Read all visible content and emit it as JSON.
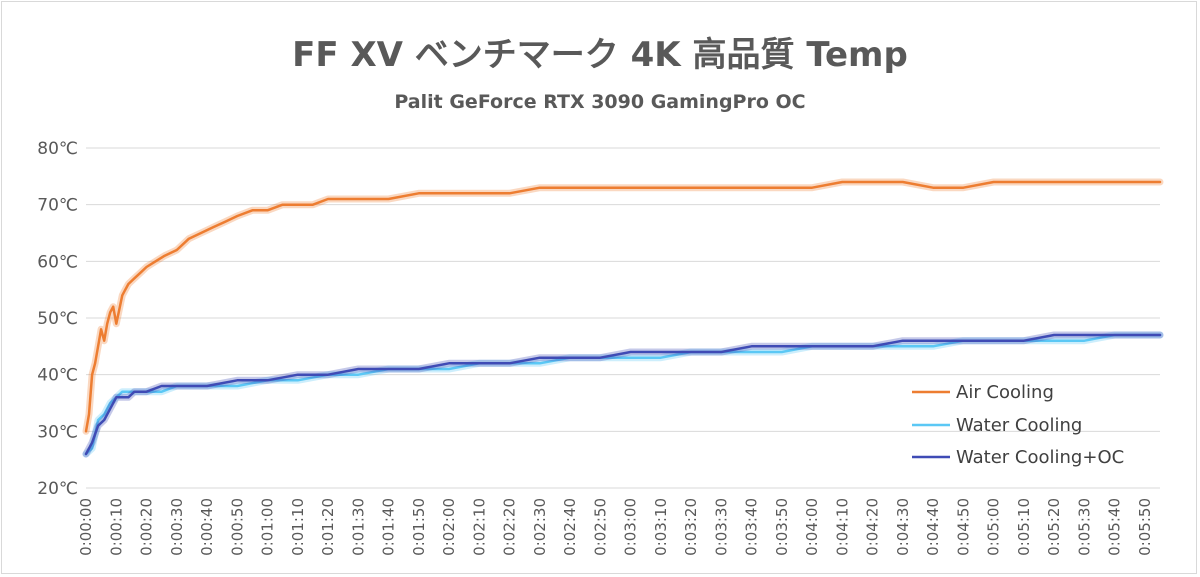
{
  "chart_data": {
    "type": "line",
    "title": "FF XV ベンチマーク 4K 高品質 Temp",
    "subtitle": "Palit GeForce RTX 3090 GamingPro OC",
    "xlabel": "",
    "ylabel": "",
    "ylim": [
      20,
      80
    ],
    "y_ticks": [
      20,
      30,
      40,
      50,
      60,
      70,
      80
    ],
    "y_tick_labels": [
      "20℃",
      "30℃",
      "40℃",
      "50℃",
      "60℃",
      "70℃",
      "80℃"
    ],
    "x_range_seconds": [
      0,
      355
    ],
    "x_ticks_seconds": [
      0,
      10,
      20,
      30,
      40,
      50,
      60,
      70,
      80,
      90,
      100,
      110,
      120,
      130,
      140,
      150,
      160,
      170,
      180,
      190,
      200,
      210,
      220,
      230,
      240,
      250,
      260,
      270,
      280,
      290,
      300,
      310,
      320,
      330,
      340,
      350
    ],
    "x_tick_labels": [
      "0:00:00",
      "0:00:10",
      "0:00:20",
      "0:00:30",
      "0:00:40",
      "0:00:50",
      "0:01:00",
      "0:01:10",
      "0:01:20",
      "0:01:30",
      "0:01:40",
      "0:01:50",
      "0:02:00",
      "0:02:10",
      "0:02:20",
      "0:02:30",
      "0:02:40",
      "0:02:50",
      "0:03:00",
      "0:03:10",
      "0:03:20",
      "0:03:30",
      "0:03:40",
      "0:03:50",
      "0:04:00",
      "0:04:10",
      "0:04:20",
      "0:04:30",
      "0:04:40",
      "0:04:50",
      "0:05:00",
      "0:05:10",
      "0:05:20",
      "0:05:30",
      "0:05:40",
      "0:05:50"
    ],
    "legend_position": "right",
    "series": [
      {
        "name": "Air Cooling",
        "color": "#ED7D31",
        "x": [
          0,
          1,
          2,
          3,
          5,
          6,
          7,
          8,
          9,
          10,
          12,
          13,
          14,
          16,
          18,
          20,
          23,
          26,
          30,
          34,
          38,
          42,
          46,
          50,
          55,
          60,
          65,
          70,
          75,
          80,
          85,
          90,
          100,
          110,
          120,
          130,
          140,
          150,
          160,
          170,
          180,
          190,
          200,
          210,
          220,
          230,
          240,
          250,
          260,
          270,
          280,
          290,
          300,
          310,
          320,
          330,
          340,
          350,
          355
        ],
        "values": [
          30,
          33,
          40,
          42,
          48,
          46,
          49,
          51,
          52,
          49,
          54,
          55,
          56,
          57,
          58,
          59,
          60,
          61,
          62,
          64,
          65,
          66,
          67,
          68,
          69,
          69,
          70,
          70,
          70,
          71,
          71,
          71,
          71,
          72,
          72,
          72,
          72,
          73,
          73,
          73,
          73,
          73,
          73,
          73,
          73,
          73,
          73,
          74,
          74,
          74,
          73,
          73,
          74,
          74,
          74,
          74,
          74,
          74,
          74
        ]
      },
      {
        "name": "Water Cooling",
        "color": "#5BC8F5",
        "x": [
          0,
          2,
          4,
          6,
          8,
          10,
          12,
          14,
          16,
          18,
          20,
          25,
          30,
          40,
          50,
          60,
          70,
          80,
          90,
          100,
          110,
          120,
          130,
          140,
          150,
          160,
          170,
          180,
          190,
          200,
          210,
          220,
          230,
          240,
          250,
          260,
          270,
          280,
          290,
          300,
          310,
          320,
          330,
          340,
          350,
          355
        ],
        "values": [
          26,
          27,
          32,
          33,
          35,
          36,
          37,
          37,
          37,
          37,
          37,
          37,
          38,
          38,
          38,
          39,
          39,
          40,
          40,
          41,
          41,
          41,
          42,
          42,
          42,
          43,
          43,
          43,
          43,
          44,
          44,
          44,
          44,
          45,
          45,
          45,
          45,
          45,
          46,
          46,
          46,
          46,
          46,
          47,
          47,
          47
        ]
      },
      {
        "name": "Water Cooling+OC",
        "color": "#3F4BB5",
        "x": [
          0,
          2,
          4,
          6,
          8,
          10,
          12,
          14,
          16,
          18,
          20,
          25,
          30,
          40,
          50,
          60,
          70,
          80,
          90,
          100,
          110,
          120,
          130,
          140,
          150,
          160,
          170,
          180,
          190,
          200,
          210,
          220,
          230,
          240,
          250,
          260,
          270,
          280,
          290,
          300,
          310,
          320,
          330,
          340,
          350,
          355
        ],
        "values": [
          26,
          28,
          31,
          32,
          34,
          36,
          36,
          36,
          37,
          37,
          37,
          38,
          38,
          38,
          39,
          39,
          40,
          40,
          41,
          41,
          41,
          42,
          42,
          42,
          43,
          43,
          43,
          44,
          44,
          44,
          44,
          45,
          45,
          45,
          45,
          45,
          46,
          46,
          46,
          46,
          46,
          47,
          47,
          47,
          47,
          47
        ]
      }
    ]
  }
}
